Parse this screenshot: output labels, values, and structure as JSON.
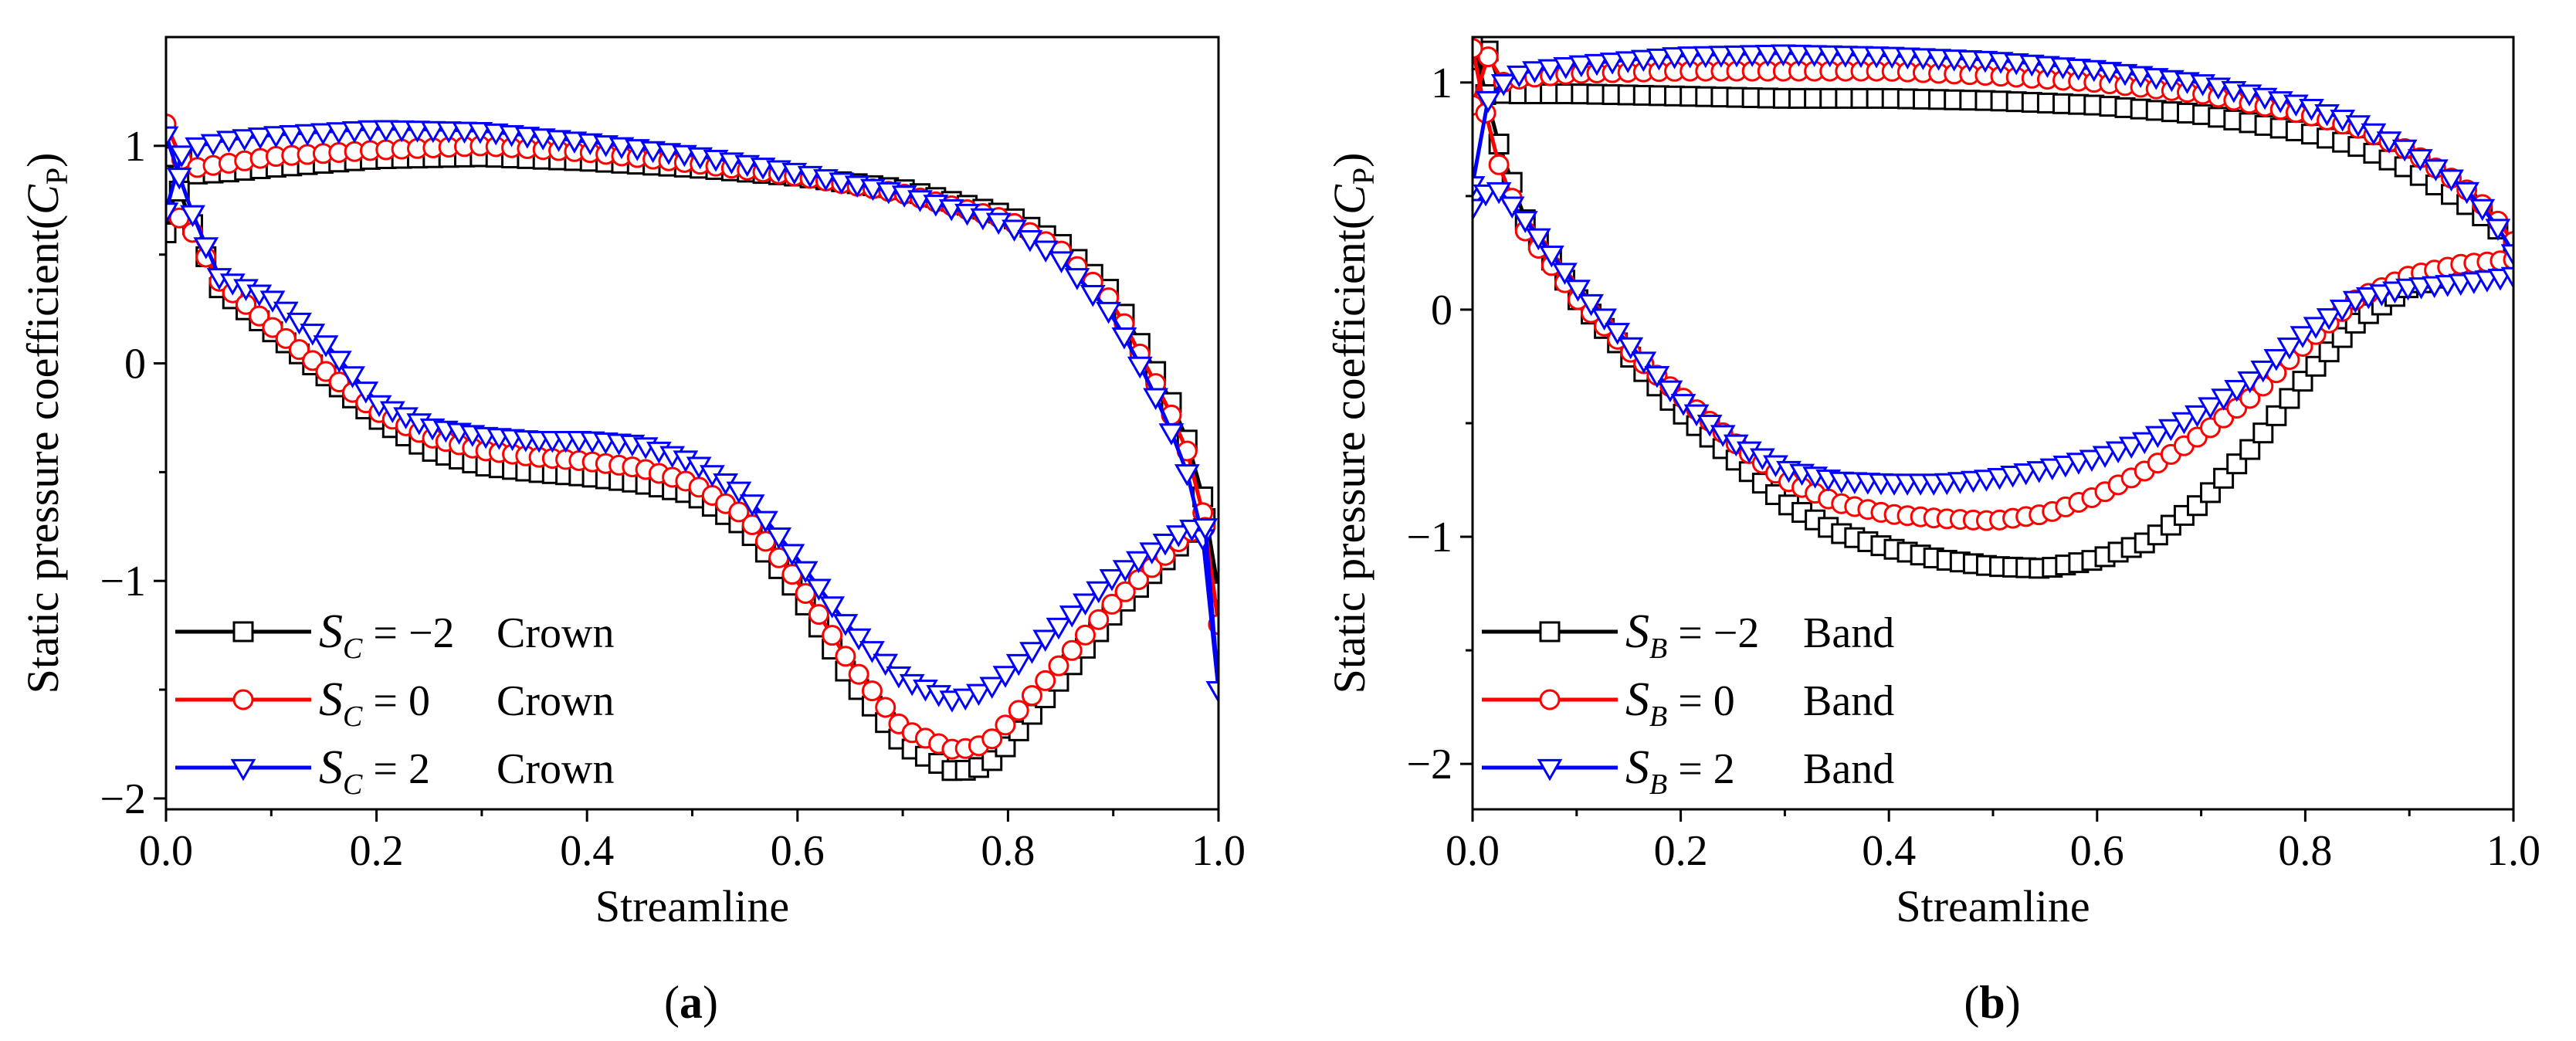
{
  "chart_data": [
    {
      "type": "line",
      "panel_label": "(a)",
      "xlabel": "Streamline",
      "ylabel": "Static pressure coefficient(",
      "ylabel_var": "C",
      "ylabel_sub": "P",
      "ylabel_close": ")",
      "xlim": [
        0,
        1
      ],
      "ylim": [
        -2.05,
        1.5
      ],
      "xticks": [
        0.0,
        0.2,
        0.4,
        0.6,
        0.8,
        1.0
      ],
      "xtick_labels": [
        "0.0",
        "0.2",
        "0.4",
        "0.6",
        "0.8",
        "1.0"
      ],
      "yticks": [
        -2,
        -1,
        0,
        1
      ],
      "ytick_labels": [
        "−2",
        "−1",
        "0",
        "1"
      ],
      "legend_position": "bottom-left",
      "series": [
        {
          "name": "S_C = −2 Crown",
          "legend_var": "S",
          "legend_sub": "C",
          "legend_eq": " = −2",
          "legend_word": "Crown",
          "color": "#000000",
          "marker": "square",
          "upper": {
            "x": [
              0.0,
              0.01,
              0.03,
              0.06,
              0.1,
              0.2,
              0.3,
              0.4,
              0.5,
              0.6,
              0.7,
              0.8,
              0.85,
              0.9,
              0.93,
              0.95,
              0.97,
              0.99,
              1.0
            ],
            "y": [
              0.6,
              0.95,
              0.87,
              0.88,
              0.9,
              0.94,
              0.95,
              0.93,
              0.9,
              0.86,
              0.8,
              0.68,
              0.55,
              0.32,
              0.05,
              -0.12,
              -0.35,
              -0.7,
              -1.05
            ]
          },
          "lower": {
            "x": [
              0.0,
              0.02,
              0.05,
              0.1,
              0.15,
              0.2,
              0.25,
              0.3,
              0.35,
              0.4,
              0.45,
              0.5,
              0.55,
              0.6,
              0.65,
              0.7,
              0.75,
              0.78,
              0.8,
              0.85,
              0.9,
              0.95,
              0.97,
              0.99,
              1.0
            ],
            "y": [
              0.95,
              0.7,
              0.35,
              0.15,
              -0.05,
              -0.25,
              -0.4,
              -0.47,
              -0.5,
              -0.52,
              -0.55,
              -0.6,
              -0.75,
              -1.05,
              -1.45,
              -1.75,
              -1.88,
              -1.85,
              -1.75,
              -1.45,
              -1.15,
              -0.9,
              -0.8,
              -0.7,
              -1.05
            ]
          }
        },
        {
          "name": "S_C = 0 Crown",
          "legend_var": "S",
          "legend_sub": "C",
          "legend_eq": " = 0",
          "legend_word": "Crown",
          "color": "#ff0000",
          "marker": "circle",
          "upper": {
            "x": [
              0.0,
              0.01,
              0.03,
              0.06,
              0.1,
              0.2,
              0.3,
              0.4,
              0.5,
              0.6,
              0.7,
              0.8,
              0.85,
              0.9,
              0.93,
              0.95,
              0.97,
              0.99,
              1.0
            ],
            "y": [
              1.1,
              0.95,
              0.9,
              0.92,
              0.95,
              0.98,
              1.0,
              0.97,
              0.92,
              0.86,
              0.78,
              0.66,
              0.52,
              0.28,
              0.0,
              -0.18,
              -0.4,
              -0.78,
              -1.2
            ]
          },
          "lower": {
            "x": [
              0.0,
              0.02,
              0.05,
              0.1,
              0.15,
              0.2,
              0.25,
              0.3,
              0.35,
              0.4,
              0.45,
              0.5,
              0.55,
              0.6,
              0.65,
              0.7,
              0.75,
              0.78,
              0.8,
              0.85,
              0.9,
              0.95,
              0.97,
              0.99,
              1.0
            ],
            "y": [
              0.7,
              0.65,
              0.38,
              0.17,
              -0.03,
              -0.22,
              -0.34,
              -0.4,
              -0.43,
              -0.45,
              -0.48,
              -0.55,
              -0.7,
              -1.0,
              -1.38,
              -1.68,
              -1.78,
              -1.75,
              -1.65,
              -1.38,
              -1.1,
              -0.88,
              -0.78,
              -0.75,
              -1.2
            ]
          }
        },
        {
          "name": "S_C = 2 Crown",
          "legend_var": "S",
          "legend_sub": "C",
          "legend_eq": " = 2",
          "legend_word": "Crown",
          "color": "#0000ff",
          "marker": "triangle-down",
          "upper": {
            "x": [
              0.0,
              0.01,
              0.03,
              0.06,
              0.1,
              0.2,
              0.3,
              0.4,
              0.5,
              0.6,
              0.7,
              0.8,
              0.85,
              0.9,
              0.93,
              0.95,
              0.97,
              0.99,
              1.0
            ],
            "y": [
              0.7,
              0.95,
              1.0,
              1.03,
              1.05,
              1.08,
              1.07,
              1.02,
              0.96,
              0.88,
              0.78,
              0.64,
              0.48,
              0.22,
              -0.05,
              -0.25,
              -0.5,
              -0.9,
              -1.5
            ]
          },
          "lower": {
            "x": [
              0.0,
              0.02,
              0.05,
              0.1,
              0.15,
              0.2,
              0.25,
              0.3,
              0.35,
              0.4,
              0.45,
              0.5,
              0.55,
              0.6,
              0.65,
              0.7,
              0.75,
              0.78,
              0.8,
              0.85,
              0.9,
              0.95,
              0.97,
              0.99,
              1.0
            ],
            "y": [
              1.05,
              0.75,
              0.4,
              0.3,
              0.1,
              -0.18,
              -0.29,
              -0.33,
              -0.35,
              -0.35,
              -0.37,
              -0.45,
              -0.6,
              -0.9,
              -1.22,
              -1.45,
              -1.55,
              -1.5,
              -1.42,
              -1.2,
              -0.98,
              -0.82,
              -0.76,
              -0.75,
              -1.5
            ]
          }
        }
      ]
    },
    {
      "type": "line",
      "panel_label": "(b)",
      "xlabel": "Streamline",
      "ylabel": "Static pressure coefficient(",
      "ylabel_var": "C",
      "ylabel_sub": "P",
      "ylabel_close": ")",
      "xlim": [
        0,
        1
      ],
      "ylim": [
        -2.2,
        1.2
      ],
      "xticks": [
        0.0,
        0.2,
        0.4,
        0.6,
        0.8,
        1.0
      ],
      "xtick_labels": [
        "0.0",
        "0.2",
        "0.4",
        "0.6",
        "0.8",
        "1.0"
      ],
      "yticks": [
        -2,
        -1,
        0,
        1
      ],
      "ytick_labels": [
        "−2",
        "−1",
        "0",
        "1"
      ],
      "legend_position": "bottom-left",
      "series": [
        {
          "name": "S_B = −2 Band",
          "legend_var": "S",
          "legend_sub": "B",
          "legend_eq": " = −2",
          "legend_word": "Band",
          "color": "#000000",
          "marker": "square",
          "upper": {
            "x": [
              0.0,
              0.01,
              0.03,
              0.05,
              0.1,
              0.2,
              0.3,
              0.4,
              0.5,
              0.6,
              0.7,
              0.8,
              0.85,
              0.9,
              0.95,
              0.98,
              1.0
            ],
            "y": [
              1.1,
              1.2,
              0.95,
              0.95,
              0.95,
              0.94,
              0.93,
              0.93,
              0.92,
              0.9,
              0.86,
              0.78,
              0.72,
              0.62,
              0.48,
              0.38,
              0.28
            ]
          },
          "lower": {
            "x": [
              0.0,
              0.02,
              0.05,
              0.1,
              0.15,
              0.2,
              0.25,
              0.3,
              0.35,
              0.4,
              0.45,
              0.5,
              0.55,
              0.6,
              0.65,
              0.7,
              0.75,
              0.8,
              0.85,
              0.9,
              0.95,
              1.0
            ],
            "y": [
              1.2,
              0.8,
              0.4,
              0.05,
              -0.2,
              -0.45,
              -0.65,
              -0.85,
              -0.98,
              -1.05,
              -1.1,
              -1.13,
              -1.14,
              -1.1,
              -1.02,
              -0.85,
              -0.6,
              -0.3,
              -0.05,
              0.1,
              0.18,
              0.2
            ]
          }
        },
        {
          "name": "S_B = 0 Band",
          "legend_var": "S",
          "legend_sub": "B",
          "legend_eq": " = 0",
          "legend_word": "Band",
          "color": "#ff0000",
          "marker": "circle",
          "upper": {
            "x": [
              0.0,
              0.01,
              0.03,
              0.05,
              0.1,
              0.2,
              0.3,
              0.4,
              0.5,
              0.6,
              0.7,
              0.8,
              0.85,
              0.9,
              0.95,
              0.98,
              1.0
            ],
            "y": [
              0.9,
              1.15,
              1.0,
              1.02,
              1.04,
              1.05,
              1.05,
              1.05,
              1.03,
              1.0,
              0.95,
              0.86,
              0.8,
              0.7,
              0.55,
              0.42,
              0.3
            ]
          },
          "lower": {
            "x": [
              0.0,
              0.02,
              0.05,
              0.1,
              0.15,
              0.2,
              0.25,
              0.3,
              0.35,
              0.4,
              0.45,
              0.5,
              0.55,
              0.6,
              0.65,
              0.7,
              0.75,
              0.8,
              0.85,
              0.9,
              0.95,
              1.0
            ],
            "y": [
              1.15,
              0.7,
              0.35,
              0.05,
              -0.18,
              -0.38,
              -0.58,
              -0.75,
              -0.85,
              -0.9,
              -0.92,
              -0.93,
              -0.9,
              -0.82,
              -0.7,
              -0.55,
              -0.38,
              -0.15,
              0.05,
              0.15,
              0.2,
              0.22
            ]
          }
        },
        {
          "name": "S_B = 2 Band",
          "legend_var": "S",
          "legend_sub": "B",
          "legend_eq": " = 2",
          "legend_word": "Band",
          "color": "#0000ff",
          "marker": "triangle-down",
          "upper": {
            "x": [
              0.0,
              0.01,
              0.03,
              0.05,
              0.1,
              0.2,
              0.3,
              0.4,
              0.5,
              0.6,
              0.7,
              0.8,
              0.85,
              0.9,
              0.95,
              0.98,
              1.0
            ],
            "y": [
              0.55,
              0.9,
              1.0,
              1.05,
              1.08,
              1.12,
              1.13,
              1.12,
              1.1,
              1.06,
              1.0,
              0.9,
              0.82,
              0.7,
              0.55,
              0.4,
              0.25
            ]
          },
          "lower": {
            "x": [
              0.0,
              0.02,
              0.05,
              0.1,
              0.15,
              0.2,
              0.25,
              0.3,
              0.35,
              0.4,
              0.45,
              0.5,
              0.55,
              0.6,
              0.65,
              0.7,
              0.75,
              0.8,
              0.85,
              0.9,
              0.95,
              1.0
            ],
            "y": [
              0.45,
              0.55,
              0.4,
              0.1,
              -0.15,
              -0.4,
              -0.58,
              -0.7,
              -0.75,
              -0.76,
              -0.76,
              -0.74,
              -0.7,
              -0.65,
              -0.57,
              -0.45,
              -0.3,
              -0.1,
              0.05,
              0.1,
              0.12,
              0.15
            ]
          }
        }
      ]
    }
  ]
}
